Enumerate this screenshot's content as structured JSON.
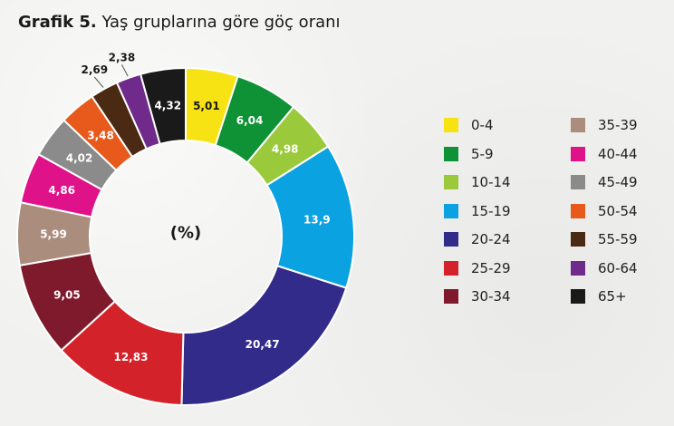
{
  "title": {
    "prefix": "Grafik 5.",
    "text": "Yaş gruplarına göre göç oranı"
  },
  "chart_data": {
    "type": "pie",
    "variant": "donut",
    "center_label": "(%)",
    "categories": [
      "0-4",
      "5-9",
      "10-14",
      "15-19",
      "20-24",
      "25-29",
      "30-34",
      "35-39",
      "40-44",
      "45-49",
      "50-54",
      "55-59",
      "60-64",
      "65+"
    ],
    "values": [
      5.01,
      6.04,
      4.98,
      13.9,
      20.47,
      12.83,
      9.05,
      5.99,
      4.86,
      4.02,
      3.48,
      2.69,
      2.38,
      4.32
    ],
    "value_labels": [
      "5,01",
      "6,04",
      "4,98",
      "13,9",
      "20,47",
      "12,83",
      "9,05",
      "5,99",
      "4,86",
      "4,02",
      "3,48",
      "2,69",
      "2,38",
      "4,32"
    ],
    "colors": [
      "#f7e313",
      "#0f9136",
      "#9bc93c",
      "#0aa2e0",
      "#332b89",
      "#d3222a",
      "#7f1a2c",
      "#ab8d7e",
      "#e0128a",
      "#8b8b8b",
      "#e85a1c",
      "#4b2a14",
      "#6f2a8b",
      "#1a1a1a"
    ],
    "legend_placement": "right"
  }
}
